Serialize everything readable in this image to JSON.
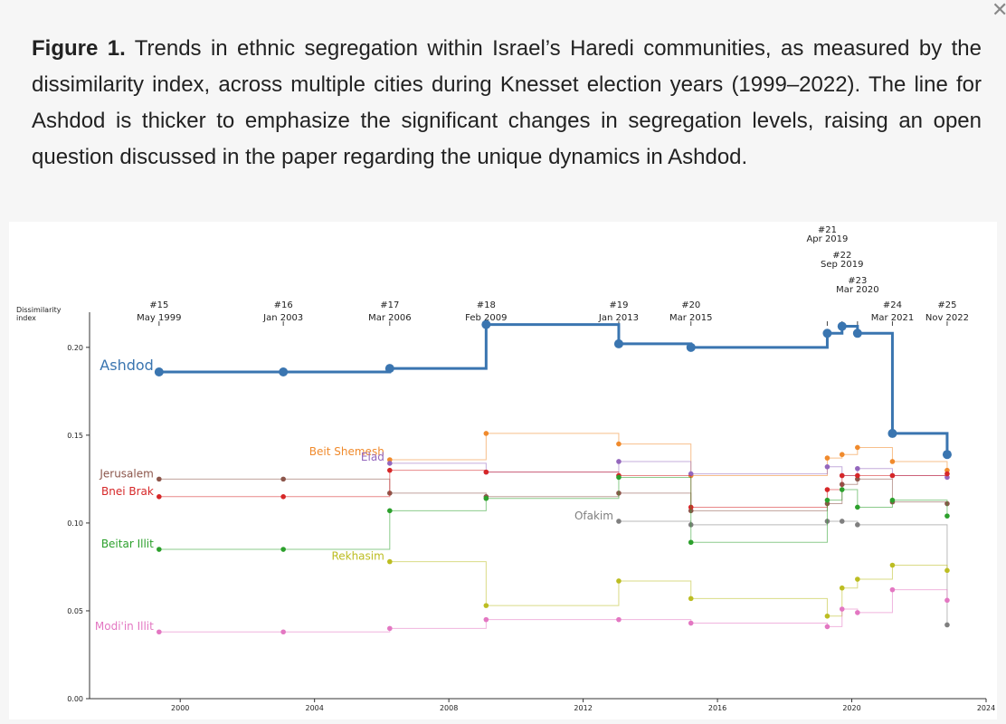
{
  "caption": {
    "label": "Figure 1.",
    "text": " Trends in ethnic segregation within Israel’s Haredi communities, as measured by the dissimilarity index, across multiple cities during Knesset election years (1999–2022). The line for Ashdod is thicker to emphasize the significant changes in segregation levels, raising an open question discussed in the paper regarding the unique dynamics in Ashdod."
  },
  "close_icon": "close-x-icon",
  "chart_data": {
    "type": "line",
    "step": "post",
    "ylabel": "Dissimilarity\nindex",
    "ylim": [
      0,
      0.22
    ],
    "xlim": [
      1997.3,
      2024
    ],
    "yticks": [
      0.0,
      0.05,
      0.1,
      0.15,
      0.2
    ],
    "ytick_labels": [
      "0.00",
      "0.05",
      "0.10",
      "0.15",
      "0.20"
    ],
    "xticks": [
      2000,
      2004,
      2008,
      2012,
      2016,
      2020,
      2024
    ],
    "xtick_labels": [
      "2000",
      "2004",
      "2008",
      "2012",
      "2016",
      "2020",
      "2024"
    ],
    "elections": [
      {
        "label": "#15",
        "date": "May 1999",
        "x": 1999.37
      },
      {
        "label": "#16",
        "date": "Jan 2003",
        "x": 2003.07
      },
      {
        "label": "#17",
        "date": "Mar 2006",
        "x": 2006.24
      },
      {
        "label": "#18",
        "date": "Feb 2009",
        "x": 2009.11
      },
      {
        "label": "#19",
        "date": "Jan 2013",
        "x": 2013.06
      },
      {
        "label": "#20",
        "date": "Mar 2015",
        "x": 2015.21
      },
      {
        "label": "#21",
        "date": "Apr 2019",
        "x": 2019.27
      },
      {
        "label": "#22",
        "date": "Sep 2019",
        "x": 2019.71
      },
      {
        "label": "#23",
        "date": "Mar 2020",
        "x": 2020.17
      },
      {
        "label": "#24",
        "date": "Mar 2021",
        "x": 2021.21
      },
      {
        "label": "#25",
        "date": "Nov 2022",
        "x": 2022.84
      }
    ],
    "series": [
      {
        "name": "Ashdod",
        "color": "#3a75b0",
        "thick": true,
        "values": [
          0.186,
          0.186,
          0.188,
          0.213,
          0.202,
          0.2,
          0.208,
          0.212,
          0.208,
          0.151,
          0.139
        ]
      },
      {
        "name": "Beit Shemesh",
        "color": "#f08a2c",
        "values": [
          null,
          null,
          0.136,
          0.151,
          0.145,
          0.127,
          0.137,
          0.139,
          0.143,
          0.135,
          0.13
        ]
      },
      {
        "name": "Elad",
        "color": "#9467bd",
        "values": [
          null,
          null,
          0.134,
          0.129,
          0.135,
          0.128,
          0.132,
          0.127,
          0.131,
          0.127,
          0.126
        ]
      },
      {
        "name": "Jerusalem",
        "color": "#8c564b",
        "values": [
          0.125,
          0.125,
          0.117,
          0.115,
          0.117,
          0.107,
          0.111,
          0.122,
          0.125,
          0.112,
          0.111
        ]
      },
      {
        "name": "Bnei Brak",
        "color": "#d62728",
        "values": [
          0.115,
          0.115,
          0.13,
          0.129,
          0.127,
          0.109,
          0.119,
          0.127,
          0.127,
          0.127,
          0.128
        ]
      },
      {
        "name": "Ofakim",
        "color": "#7f7f7f",
        "values": [
          null,
          null,
          null,
          null,
          0.101,
          0.099,
          0.101,
          0.101,
          0.099,
          null,
          0.042
        ]
      },
      {
        "name": "Beitar Illit",
        "color": "#2ca02c",
        "values": [
          0.085,
          0.085,
          0.107,
          0.114,
          0.126,
          0.089,
          0.113,
          0.119,
          0.109,
          0.113,
          0.104
        ]
      },
      {
        "name": "Rekhasim",
        "color": "#bcbd22",
        "values": [
          null,
          null,
          0.078,
          0.053,
          0.067,
          0.057,
          0.047,
          0.063,
          0.068,
          0.076,
          0.073
        ]
      },
      {
        "name": "Modi'in Illit",
        "color": "#e377c2",
        "values": [
          0.038,
          0.038,
          0.04,
          0.045,
          0.045,
          0.043,
          0.041,
          0.051,
          0.049,
          0.062,
          0.056
        ]
      }
    ]
  }
}
